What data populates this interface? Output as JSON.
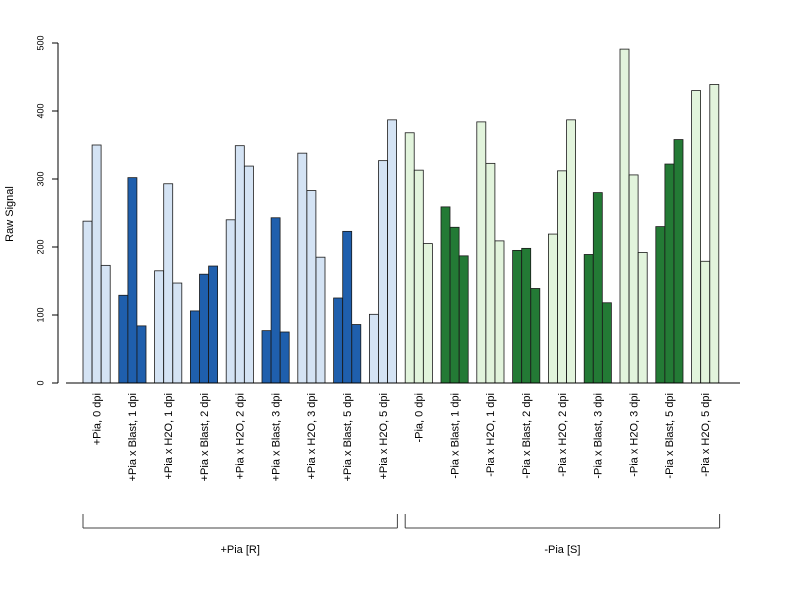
{
  "chart_data": {
    "type": "bar",
    "ylabel": "Raw Signal",
    "ylim": [
      0,
      500
    ],
    "yticks": [
      0,
      100,
      200,
      300,
      400,
      500
    ],
    "categories": [
      "+Pia, 0 dpi",
      "+Pia x Blast, 1 dpi",
      "+Pia x H2O, 1 dpi",
      "+Pia x Blast, 2 dpi",
      "+Pia x H2O, 2 dpi",
      "+Pia x Blast, 3 dpi",
      "+Pia x H2O, 3 dpi",
      "+Pia x Blast, 5 dpi",
      "+Pia x H2O, 5 dpi",
      "-Pia, 0 dpi",
      "-Pia x Blast, 1 dpi",
      "-Pia x H2O, 1 dpi",
      "-Pia x Blast, 2 dpi",
      "-Pia x H2O, 2 dpi",
      "-Pia x Blast, 3 dpi",
      "-Pia x H2O, 3 dpi",
      "-Pia x Blast, 5 dpi",
      "-Pia x H2O, 5 dpi"
    ],
    "replicates_per_category": 3,
    "values": [
      [
        238,
        350,
        173
      ],
      [
        129,
        302,
        84
      ],
      [
        165,
        293,
        147
      ],
      [
        106,
        160,
        172
      ],
      [
        240,
        349,
        319
      ],
      [
        77,
        243,
        75
      ],
      [
        338,
        283,
        185
      ],
      [
        125,
        223,
        86
      ],
      [
        101,
        327,
        387
      ],
      [
        368,
        313,
        205
      ],
      [
        259,
        229,
        187
      ],
      [
        384,
        323,
        209
      ],
      [
        195,
        198,
        139
      ],
      [
        219,
        312,
        387
      ],
      [
        189,
        280,
        118
      ],
      [
        491,
        306,
        192
      ],
      [
        230,
        322,
        358
      ],
      [
        430,
        179,
        439
      ]
    ],
    "bar_colors": [
      "#d4e3f4",
      "#1f5fad",
      "#d4e3f4",
      "#1f5fad",
      "#d4e3f4",
      "#1f5fad",
      "#d4e3f4",
      "#1f5fad",
      "#d4e3f4",
      "#e2f4dc",
      "#237a35",
      "#e2f4dc",
      "#237a35",
      "#e2f4dc",
      "#237a35",
      "#e2f4dc",
      "#237a35",
      "#e2f4dc"
    ],
    "groups": [
      {
        "label": "+Pia [R]",
        "from": 0,
        "to": 8
      },
      {
        "label": "-Pia [S]",
        "from": 9,
        "to": 17
      }
    ],
    "grid": false
  }
}
